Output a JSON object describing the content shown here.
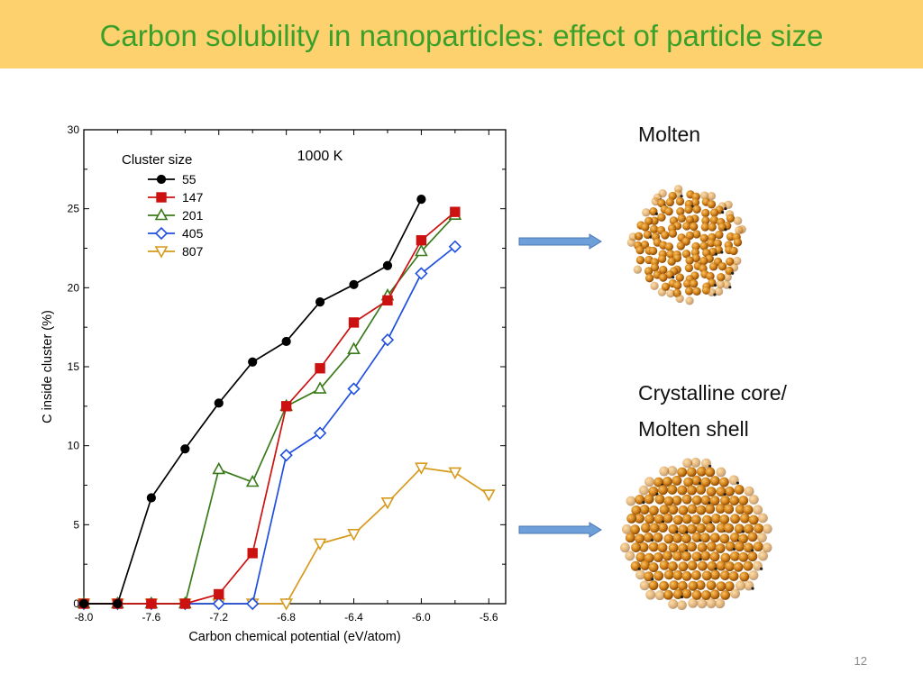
{
  "slide": {
    "title": "Carbon solubility in nanoparticles: effect of particle size",
    "page_number": "12",
    "labels": {
      "molten": "Molten",
      "crystalline_line1": "Crystalline core/",
      "crystalline_line2": "Molten shell"
    }
  },
  "chart_data": {
    "type": "line",
    "title": "",
    "annotation": "1000 K",
    "legend_title": "Cluster size",
    "legend_position": "top-left",
    "xlabel": "Carbon chemical potential (eV/atom)",
    "ylabel": "C inside cluster (%)",
    "xlim": [
      -8.0,
      -5.5
    ],
    "ylim": [
      0,
      30
    ],
    "xticks": [
      "-8.0",
      "-7.6",
      "-7.2",
      "-6.8",
      "-6.4",
      "-6.0",
      "-5.6"
    ],
    "yticks": [
      "0",
      "5",
      "10",
      "15",
      "20",
      "25",
      "30"
    ],
    "grid": false,
    "series": [
      {
        "name": "55",
        "color": "#000000",
        "marker": "circle",
        "x": [
          -8.0,
          -7.8,
          -7.6,
          -7.4,
          -7.2,
          -7.0,
          -6.8,
          -6.6,
          -6.4,
          -6.2,
          -6.0
        ],
        "y": [
          0,
          0,
          6.7,
          9.8,
          12.7,
          15.3,
          16.6,
          19.1,
          20.2,
          21.4,
          25.6
        ]
      },
      {
        "name": "147",
        "color": "#cc1111",
        "marker": "square",
        "x": [
          -8.0,
          -7.8,
          -7.6,
          -7.4,
          -7.2,
          -7.0,
          -6.8,
          -6.6,
          -6.4,
          -6.2,
          -6.0,
          -5.8
        ],
        "y": [
          0,
          0,
          0,
          0,
          0.6,
          3.2,
          12.5,
          14.9,
          17.8,
          19.2,
          23.0,
          24.8
        ]
      },
      {
        "name": "201",
        "color": "#3a7a1a",
        "marker": "triangle",
        "x": [
          -8.0,
          -7.8,
          -7.6,
          -7.4,
          -7.2,
          -7.0,
          -6.8,
          -6.6,
          -6.4,
          -6.2,
          -6.0,
          -5.8
        ],
        "y": [
          0,
          0,
          0,
          0,
          8.5,
          7.7,
          12.5,
          13.6,
          16.1,
          19.5,
          22.3,
          24.6
        ]
      },
      {
        "name": "405",
        "color": "#1f4fe0",
        "marker": "diamond",
        "x": [
          -8.0,
          -7.8,
          -7.6,
          -7.4,
          -7.2,
          -7.0,
          -6.8,
          -6.6,
          -6.4,
          -6.2,
          -6.0,
          -5.8
        ],
        "y": [
          0,
          0,
          0,
          0,
          0,
          0,
          9.4,
          10.8,
          13.6,
          16.7,
          20.9,
          22.6
        ]
      },
      {
        "name": "807",
        "color": "#d69a1c",
        "marker": "triangle-down",
        "x": [
          -8.0,
          -7.8,
          -7.6,
          -7.4,
          -7.2,
          -7.0,
          -6.8,
          -6.6,
          -6.4,
          -6.2,
          -6.0,
          -5.8,
          -5.6
        ],
        "y": [
          0,
          0,
          0,
          0,
          0,
          0,
          0,
          3.8,
          4.4,
          6.4,
          8.6,
          8.3,
          6.9
        ]
      }
    ]
  }
}
